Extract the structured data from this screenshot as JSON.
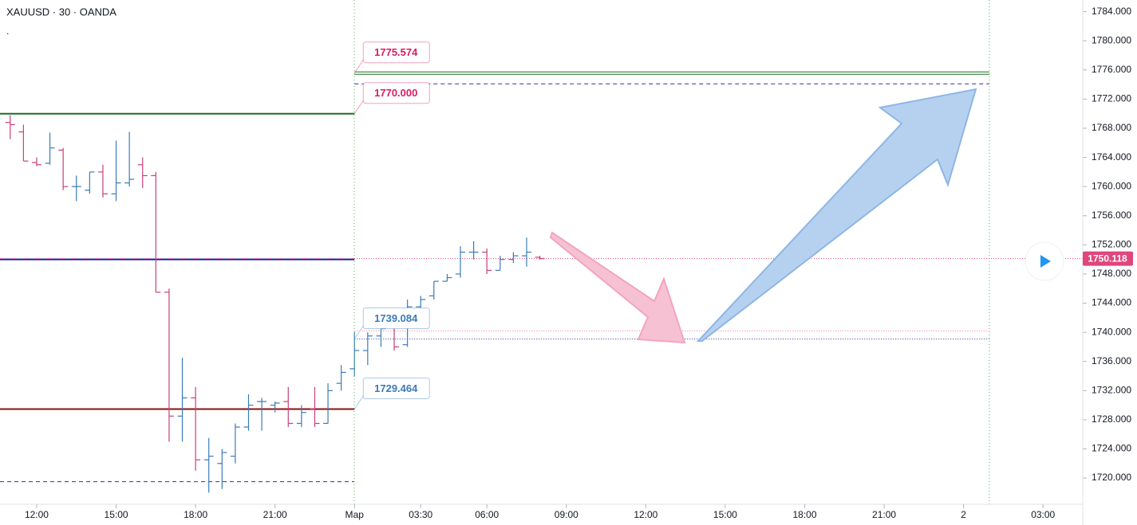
{
  "chart_data": {
    "type": "ohlc",
    "title": "XAUUSD · 30 · OANDA",
    "subtitle": ".",
    "x": [
      -2,
      -1,
      0,
      1,
      2,
      3,
      4,
      5,
      6,
      7,
      8,
      9,
      10,
      11,
      12,
      13,
      14,
      15,
      16,
      17,
      18,
      19,
      20,
      21,
      22,
      23,
      24,
      25,
      26,
      27,
      28,
      29,
      30,
      31,
      32,
      33,
      34,
      35,
      36,
      37,
      38
    ],
    "open": [
      1768.8,
      1767.5,
      1763.3,
      1763.2,
      1765,
      1760,
      1759.5,
      1762,
      1759,
      1760.5,
      1763,
      1761.5,
      1745.5,
      1728.5,
      1731,
      1722.5,
      1722,
      1723,
      1727,
      1730.5,
      1730,
      1730.5,
      1727.5,
      1729.5,
      1727.5,
      1733,
      1735,
      1737.5,
      1739.5,
      1741,
      1738.3,
      1743.5,
      1745,
      1747,
      1748,
      1751,
      1751,
      1748.5,
      1750,
      1750.5,
      1750.3
    ],
    "high": [
      1769.8,
      1768.5,
      1764,
      1767.4,
      1765.3,
      1761.5,
      1762,
      1763,
      1766.3,
      1767.5,
      1764,
      1762,
      1746,
      1736.5,
      1732.5,
      1725.5,
      1724,
      1727.5,
      1731.5,
      1731,
      1730.5,
      1732.5,
      1730,
      1732.5,
      1733,
      1735.5,
      1740,
      1740,
      1741,
      1741.5,
      1744.5,
      1745,
      1747,
      1748,
      1751.8,
      1752.5,
      1751.5,
      1750.5,
      1751,
      1753,
      1750.5
    ],
    "low": [
      1766.5,
      1763.5,
      1762.8,
      1763,
      1759.5,
      1758,
      1759,
      1758.5,
      1758,
      1760,
      1759.8,
      1745.5,
      1725,
      1725,
      1721,
      1718,
      1718.5,
      1722,
      1726.5,
      1726.5,
      1729,
      1727,
      1727,
      1727,
      1727.5,
      1732,
      1734,
      1735.5,
      1738,
      1737.5,
      1738,
      1742,
      1744.5,
      1747,
      1747.5,
      1750,
      1748,
      1748.5,
      1749.5,
      1749,
      1750
    ],
    "close": [
      1768.5,
      1763.5,
      1763,
      1765.3,
      1760,
      1760,
      1762,
      1759,
      1760.5,
      1761,
      1761.5,
      1745.5,
      1728.5,
      1731,
      1722.5,
      1723,
      1723.5,
      1727,
      1730,
      1730.5,
      1730.3,
      1727.5,
      1729,
      1727.5,
      1732,
      1734.5,
      1737.5,
      1739.5,
      1740.5,
      1738,
      1743.5,
      1744.5,
      1747,
      1747.5,
      1751,
      1751,
      1748.5,
      1750,
      1750.5,
      1751,
      1750.118
    ],
    "up_color": "#3a7bb8",
    "down_color": "#c8407a",
    "xlim": [
      -2.77,
      79
    ],
    "xticks": [
      {
        "value": 0,
        "label": "12:00"
      },
      {
        "value": 6,
        "label": "15:00"
      },
      {
        "value": 12,
        "label": "18:00"
      },
      {
        "value": 18,
        "label": "21:00"
      },
      {
        "value": 24,
        "label": "Мар"
      },
      {
        "value": 29,
        "label": "03:30"
      },
      {
        "value": 34,
        "label": "06:00"
      },
      {
        "value": 40,
        "label": "09:00"
      },
      {
        "value": 46,
        "label": "12:00"
      },
      {
        "value": 52,
        "label": "15:00"
      },
      {
        "value": 58,
        "label": "18:00"
      },
      {
        "value": 64,
        "label": "21:00"
      },
      {
        "value": 70,
        "label": "2"
      },
      {
        "value": 76,
        "label": "03:00"
      }
    ],
    "ylim": [
      1716.4,
      1785.6
    ],
    "yticks": [
      {
        "value": 1720,
        "label": "1720.000"
      },
      {
        "value": 1724,
        "label": "1724.000"
      },
      {
        "value": 1728,
        "label": "1728.000"
      },
      {
        "value": 1732,
        "label": "1732.000"
      },
      {
        "value": 1736,
        "label": "1736.000"
      },
      {
        "value": 1740,
        "label": "1740.000"
      },
      {
        "value": 1744,
        "label": "1744.000"
      },
      {
        "value": 1748,
        "label": "1748.000"
      },
      {
        "value": 1752,
        "label": "1752.000"
      },
      {
        "value": 1756,
        "label": "1756.000"
      },
      {
        "value": 1760,
        "label": "1760.000"
      },
      {
        "value": 1764,
        "label": "1764.000"
      },
      {
        "value": 1768,
        "label": "1768.000"
      },
      {
        "value": 1772,
        "label": "1772.000"
      },
      {
        "value": 1776,
        "label": "1776.000"
      },
      {
        "value": 1780,
        "label": "1780.000"
      },
      {
        "value": 1784,
        "label": "1784.000"
      }
    ],
    "last_price": {
      "value": 1750.118,
      "label": "1750.118",
      "color": "#e0457b"
    },
    "history_levels": [
      {
        "value": 1770,
        "label": "1770.000",
        "color": "#1b6e20",
        "style": "solid",
        "label_color": "#d81b60"
      },
      {
        "value": 1750,
        "color": "#1a1aa8",
        "style": "solid"
      },
      {
        "value": 1729.464,
        "label": "1729.464",
        "color": "#8b1010",
        "style": "solid",
        "label_color": "#3a7bb8"
      },
      {
        "value": 1719.5,
        "color": "#3030a0",
        "style": "dashed"
      }
    ],
    "forecast_levels": [
      {
        "value": 1775.574,
        "label": "1775.574",
        "color": "#1b6e20",
        "style": "double",
        "label_color": "#d81b60"
      },
      {
        "value": 1774.1,
        "color": "#3030a0",
        "style": "dashed"
      },
      {
        "value": 1740.2,
        "color": "#e86a92",
        "style": "dotted"
      },
      {
        "value": 1739.084,
        "label": "1739.084",
        "color": "#3030a0",
        "style": "dotted",
        "label_color": "#3a7bb8"
      }
    ]
  }
}
